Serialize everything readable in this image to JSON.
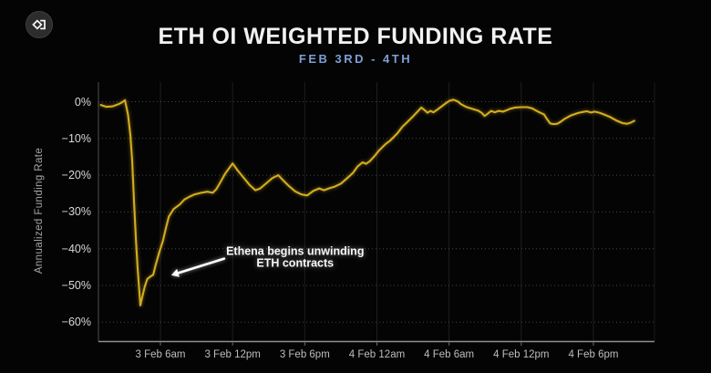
{
  "page": {
    "bg_color": "#040404"
  },
  "header": {
    "logo_icon": "sigma-diamond-logo-icon",
    "title": "ETH OI WEIGHTED FUNDING RATE",
    "subtitle": "FEB 3RD - 4TH",
    "title_color": "#f2f2f2",
    "subtitle_color": "#7e9ed6"
  },
  "chart_data": {
    "type": "line",
    "title": "ETH OI WEIGHTED FUNDING RATE",
    "subtitle": "FEB 3RD - 4TH",
    "xlabel": "",
    "ylabel": "Annualized Funding Rate",
    "x_unit": "hours since 3 Feb 12am",
    "x_domain_hours": [
      0.85,
      47.1
    ],
    "y_domain_pct": [
      4,
      -65
    ],
    "grid": true,
    "legend_position": "none",
    "line_color": "#d2ac20",
    "x_ticks": [
      {
        "hour": 6,
        "label": "3 Feb 6am"
      },
      {
        "hour": 12,
        "label": "3 Feb 12pm"
      },
      {
        "hour": 18,
        "label": "3 Feb 6pm"
      },
      {
        "hour": 24,
        "label": "4 Feb 12am"
      },
      {
        "hour": 30,
        "label": "4 Feb 6am"
      },
      {
        "hour": 36,
        "label": "4 Feb 12pm"
      },
      {
        "hour": 42,
        "label": "4 Feb 6pm"
      }
    ],
    "y_ticks": [
      {
        "pct": 0,
        "label": "0%"
      },
      {
        "pct": -10,
        "label": "−10%"
      },
      {
        "pct": -20,
        "label": "−20%"
      },
      {
        "pct": -30,
        "label": "−30%"
      },
      {
        "pct": -40,
        "label": "−40%"
      },
      {
        "pct": -50,
        "label": "−50%"
      },
      {
        "pct": -60,
        "label": "−60%"
      }
    ],
    "series": [
      {
        "name": "ETH OI weighted funding rate (annualized %)",
        "points": [
          [
            1.05,
            -0.9
          ],
          [
            1.5,
            -1.4
          ],
          [
            2.0,
            -1.3
          ],
          [
            2.5,
            -0.7
          ],
          [
            2.8,
            -0.2
          ],
          [
            3.05,
            0.4
          ],
          [
            3.3,
            -3.5
          ],
          [
            3.5,
            -9.0
          ],
          [
            3.65,
            -16.0
          ],
          [
            3.8,
            -27.0
          ],
          [
            3.95,
            -37.0
          ],
          [
            4.1,
            -45.0
          ],
          [
            4.33,
            -55.4
          ],
          [
            4.5,
            -53.0
          ],
          [
            4.7,
            -50.3
          ],
          [
            4.9,
            -48.3
          ],
          [
            5.15,
            -47.6
          ],
          [
            5.4,
            -47.1
          ],
          [
            5.6,
            -44.5
          ],
          [
            5.9,
            -41.0
          ],
          [
            6.2,
            -38.0
          ],
          [
            6.45,
            -34.5
          ],
          [
            6.7,
            -31.3
          ],
          [
            7.1,
            -29.2
          ],
          [
            7.6,
            -28.0
          ],
          [
            8.0,
            -26.6
          ],
          [
            8.45,
            -25.8
          ],
          [
            8.85,
            -25.2
          ],
          [
            9.4,
            -24.8
          ],
          [
            9.9,
            -24.5
          ],
          [
            10.35,
            -24.8
          ],
          [
            10.65,
            -23.8
          ],
          [
            11.0,
            -21.8
          ],
          [
            11.4,
            -19.5
          ],
          [
            12.0,
            -16.8
          ],
          [
            12.4,
            -18.6
          ],
          [
            12.9,
            -20.6
          ],
          [
            13.4,
            -22.6
          ],
          [
            13.9,
            -24.1
          ],
          [
            14.3,
            -23.6
          ],
          [
            14.8,
            -22.2
          ],
          [
            15.3,
            -20.8
          ],
          [
            15.8,
            -20.0
          ],
          [
            16.2,
            -21.4
          ],
          [
            16.7,
            -23.0
          ],
          [
            17.2,
            -24.4
          ],
          [
            17.7,
            -25.2
          ],
          [
            18.2,
            -25.5
          ],
          [
            18.7,
            -24.3
          ],
          [
            19.2,
            -23.6
          ],
          [
            19.6,
            -24.1
          ],
          [
            20.0,
            -23.6
          ],
          [
            20.5,
            -23.1
          ],
          [
            21.0,
            -22.3
          ],
          [
            21.5,
            -20.9
          ],
          [
            22.0,
            -19.4
          ],
          [
            22.4,
            -17.6
          ],
          [
            22.8,
            -16.5
          ],
          [
            23.1,
            -16.9
          ],
          [
            23.4,
            -16.2
          ],
          [
            23.8,
            -14.8
          ],
          [
            24.2,
            -13.2
          ],
          [
            24.7,
            -11.6
          ],
          [
            25.1,
            -10.6
          ],
          [
            25.7,
            -8.6
          ],
          [
            26.1,
            -6.9
          ],
          [
            26.6,
            -5.3
          ],
          [
            27.0,
            -4.0
          ],
          [
            27.4,
            -2.6
          ],
          [
            27.7,
            -1.6
          ],
          [
            28.0,
            -2.4
          ],
          [
            28.2,
            -3.0
          ],
          [
            28.45,
            -2.5
          ],
          [
            28.7,
            -2.9
          ],
          [
            29.0,
            -2.2
          ],
          [
            29.3,
            -1.5
          ],
          [
            29.7,
            -0.5
          ],
          [
            30.0,
            0.2
          ],
          [
            30.35,
            0.55
          ],
          [
            30.7,
            0.1
          ],
          [
            31.0,
            -0.7
          ],
          [
            31.4,
            -1.4
          ],
          [
            31.9,
            -1.9
          ],
          [
            32.4,
            -2.4
          ],
          [
            32.7,
            -3.0
          ],
          [
            32.95,
            -3.9
          ],
          [
            33.2,
            -3.3
          ],
          [
            33.5,
            -2.5
          ],
          [
            33.8,
            -2.9
          ],
          [
            34.1,
            -2.5
          ],
          [
            34.5,
            -2.7
          ],
          [
            34.8,
            -2.3
          ],
          [
            35.1,
            -1.9
          ],
          [
            35.5,
            -1.6
          ],
          [
            36.0,
            -1.5
          ],
          [
            36.5,
            -1.5
          ],
          [
            36.9,
            -1.8
          ],
          [
            37.4,
            -2.7
          ],
          [
            37.9,
            -3.5
          ],
          [
            38.15,
            -4.8
          ],
          [
            38.4,
            -5.9
          ],
          [
            38.7,
            -6.1
          ],
          [
            39.0,
            -6.0
          ],
          [
            39.3,
            -5.4
          ],
          [
            39.6,
            -4.7
          ],
          [
            40.1,
            -3.8
          ],
          [
            40.7,
            -3.1
          ],
          [
            41.1,
            -2.8
          ],
          [
            41.45,
            -2.6
          ],
          [
            41.8,
            -2.95
          ],
          [
            42.1,
            -2.7
          ],
          [
            42.5,
            -3.0
          ],
          [
            42.9,
            -3.5
          ],
          [
            43.4,
            -4.2
          ],
          [
            43.9,
            -5.1
          ],
          [
            44.4,
            -5.8
          ],
          [
            44.8,
            -6.0
          ],
          [
            45.1,
            -5.7
          ],
          [
            45.4,
            -5.2
          ]
        ]
      }
    ],
    "annotation": {
      "line1": "Ethena begins unwinding",
      "line2": "ETH contracts",
      "text_center": {
        "hour": 17.2,
        "pct": -42.5
      },
      "arrow_tail": {
        "hour": 11.3,
        "pct": -42.7
      },
      "arrow_tip": {
        "hour": 6.9,
        "pct": -47.2
      }
    }
  }
}
